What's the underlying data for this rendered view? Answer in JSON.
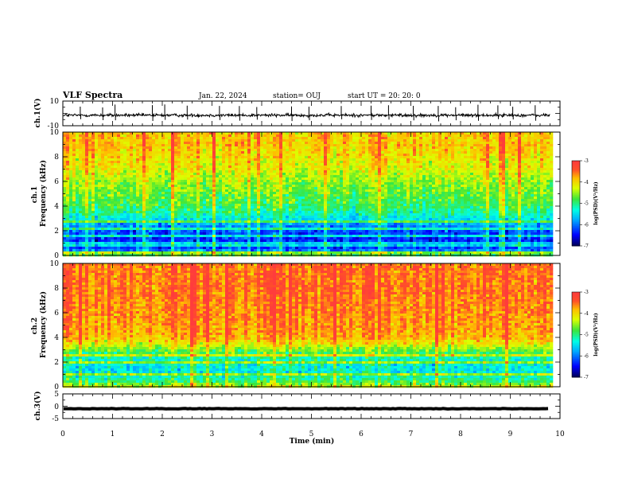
{
  "header": {
    "title": "VLF Spectra",
    "date": "Jan. 22, 2024",
    "station": "station= OUJ",
    "start": "start UT =  20: 20: 0"
  },
  "chart_data": [
    {
      "type": "line",
      "panel": "ch1-waveform",
      "ylabel": "ch.1(V)",
      "ylim": [
        -10,
        10
      ],
      "yticks": [
        "10",
        "-10"
      ],
      "xlim": [
        0,
        10
      ],
      "data_end_min": 9.8,
      "baseline": -1.5,
      "noise_amplitude": 1.2,
      "spike_times_min": [
        0.35,
        0.8,
        1.05,
        1.8,
        2.05,
        2.5,
        3.15,
        3.55,
        3.9,
        4.6,
        4.95,
        5.6,
        6.2,
        6.55,
        7.05,
        7.55,
        7.9,
        8.35,
        8.75,
        9.05,
        9.5
      ],
      "color": "#000000"
    },
    {
      "type": "heatmap",
      "panel": "ch1-spectrogram",
      "ylabel": "ch.1\nFrequency (kHz)",
      "ylim": [
        0,
        10
      ],
      "yticks": [
        "0",
        "2",
        "4",
        "6",
        "8",
        "10"
      ],
      "xlim": [
        0,
        10
      ],
      "data_end_min": 9.8,
      "colorbar": {
        "label": "log(PSD)(V²/Hz)",
        "ticks": [
          "-3",
          "-4",
          "-5",
          "-6",
          "-7"
        ],
        "range": [
          -7,
          -3
        ]
      },
      "profile_khz": [
        [
          0.0,
          -4.7
        ],
        [
          0.5,
          -6.2
        ],
        [
          1.0,
          -6.4
        ],
        [
          1.5,
          -6.3
        ],
        [
          2.0,
          -6.2
        ],
        [
          2.5,
          -5.8
        ],
        [
          3.0,
          -5.4
        ],
        [
          3.5,
          -5.1
        ],
        [
          4.0,
          -4.9
        ],
        [
          5.0,
          -4.7
        ],
        [
          6.0,
          -4.5
        ],
        [
          7.0,
          -4.2
        ],
        [
          8.0,
          -4.05
        ],
        [
          9.0,
          -3.9
        ],
        [
          10.0,
          -3.9
        ]
      ],
      "harmonic_lines_khz": [
        0.25,
        0.5,
        0.75,
        1.05,
        1.3,
        1.6,
        1.85,
        2.15,
        2.45,
        2.8,
        3.2,
        3.6
      ]
    },
    {
      "type": "heatmap",
      "panel": "ch2-spectrogram",
      "ylabel": "ch.2\nFrequency (kHz)",
      "ylim": [
        0,
        10
      ],
      "yticks": [
        "0",
        "2",
        "4",
        "6",
        "8",
        "10"
      ],
      "xlim": [
        0,
        10
      ],
      "data_end_min": 9.8,
      "colorbar": {
        "label": "log(PSD)(V²/Hz)",
        "ticks": [
          "-3",
          "-4",
          "-5",
          "-6",
          "-7"
        ],
        "range": [
          -7,
          -3
        ]
      },
      "profile_khz": [
        [
          0.0,
          -4.3
        ],
        [
          0.5,
          -5.0
        ],
        [
          1.0,
          -5.3
        ],
        [
          1.5,
          -5.4
        ],
        [
          2.0,
          -5.3
        ],
        [
          2.5,
          -5.1
        ],
        [
          3.0,
          -4.6
        ],
        [
          3.5,
          -4.1
        ],
        [
          4.0,
          -3.75
        ],
        [
          6.0,
          -3.6
        ],
        [
          8.0,
          -3.5
        ],
        [
          10.0,
          -3.5
        ]
      ],
      "harmonic_lines_khz": [
        0.5,
        1.0,
        1.5,
        2.0,
        2.5
      ]
    },
    {
      "type": "line",
      "panel": "ch3-waveform",
      "ylabel": "ch.3(V)",
      "ylim": [
        -5,
        5
      ],
      "yticks": [
        "5",
        "0",
        "-5"
      ],
      "xlim": [
        0,
        10
      ],
      "data_end_min": 9.8,
      "baseline": -1.0,
      "noise_amplitude": 0.1,
      "color": "#000000"
    }
  ],
  "xaxis": {
    "label": "Time (min)",
    "ticks": [
      "0",
      "1",
      "2",
      "3",
      "4",
      "5",
      "6",
      "7",
      "8",
      "9",
      "10"
    ]
  }
}
